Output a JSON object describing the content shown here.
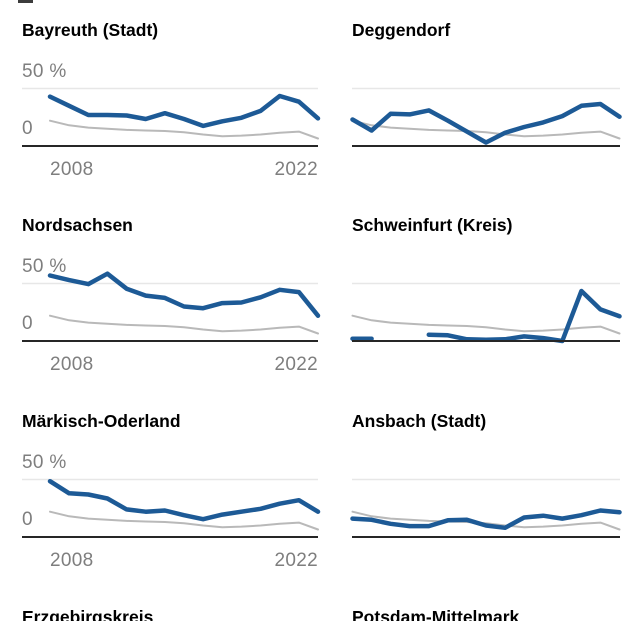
{
  "colors": {
    "line": "#1d5a96",
    "reference_line": "#b9b9b9",
    "gridline": "#e7e7e7",
    "axis_baseline": "#262626",
    "tick_label": "#7e7e7e",
    "title": "#000000",
    "background": "#ffffff",
    "top_left_sliver": "#3c3c3c"
  },
  "y_axis": {
    "top_label": "50 %",
    "zero_label": "0"
  },
  "x_axis": {
    "start_label": "2008",
    "end_label": "2022"
  },
  "chart_data": {
    "type": "line",
    "unit": "%",
    "x": [
      2008,
      2009,
      2010,
      2011,
      2012,
      2013,
      2014,
      2015,
      2016,
      2017,
      2018,
      2019,
      2020,
      2021,
      2022
    ],
    "x_tick_labels": [
      "2008",
      "2022"
    ],
    "y_gridlines": [
      0,
      50
    ],
    "ylim": [
      0,
      60
    ],
    "grid": "single light gridline at 50%, dark baseline at 0",
    "legend_position": "none",
    "layout": "small multiples, 2 columns x 4 rows; y/x tick labels shown on left column only; 4th row titles clipped by viewport bottom",
    "reference_series": {
      "name": "gray-reference-line",
      "values": [
        22,
        18,
        16,
        15,
        14,
        13.5,
        13,
        12,
        10,
        8.5,
        9,
        10,
        11.5,
        12.5,
        6.5
      ]
    },
    "panels": [
      {
        "title": "Bayreuth (Stadt)",
        "values": [
          43,
          35,
          27,
          27,
          26.5,
          23.5,
          28.5,
          23.5,
          17.5,
          21.5,
          24.5,
          30.5,
          43.5,
          38.5,
          24
        ]
      },
      {
        "title": "Deggendorf",
        "values": [
          23,
          13.5,
          28,
          27.5,
          31,
          22,
          12.5,
          3,
          11.5,
          16.5,
          20.5,
          26,
          35,
          36.5,
          25.5
        ]
      },
      {
        "title": "Nordsachsen",
        "values": [
          57,
          53,
          49.5,
          58.5,
          45.5,
          39.5,
          37.5,
          30,
          28.5,
          33,
          33.5,
          38,
          44.5,
          42.5,
          22
        ]
      },
      {
        "title": "Schweinfurt (Kreis)",
        "values": [
          2,
          2,
          null,
          null,
          5.5,
          5,
          1.5,
          1,
          1.5,
          4,
          2.5,
          0,
          43.5,
          27.5,
          21.5
        ]
      },
      {
        "title": "Märkisch-Oderland",
        "values": [
          48.5,
          38,
          37,
          33.5,
          24,
          22,
          23,
          19,
          15.5,
          19.5,
          22,
          24.5,
          29,
          32,
          22
        ]
      },
      {
        "title": "Ansbach (Stadt)",
        "values": [
          16,
          15,
          11.5,
          9.5,
          9.5,
          14.5,
          15,
          10,
          8,
          17,
          18.5,
          16,
          19,
          23,
          21.5
        ]
      },
      {
        "title": "Erzgebirgskreis",
        "values": null
      },
      {
        "title": "Potsdam-Mittelmark",
        "values": null
      }
    ]
  }
}
